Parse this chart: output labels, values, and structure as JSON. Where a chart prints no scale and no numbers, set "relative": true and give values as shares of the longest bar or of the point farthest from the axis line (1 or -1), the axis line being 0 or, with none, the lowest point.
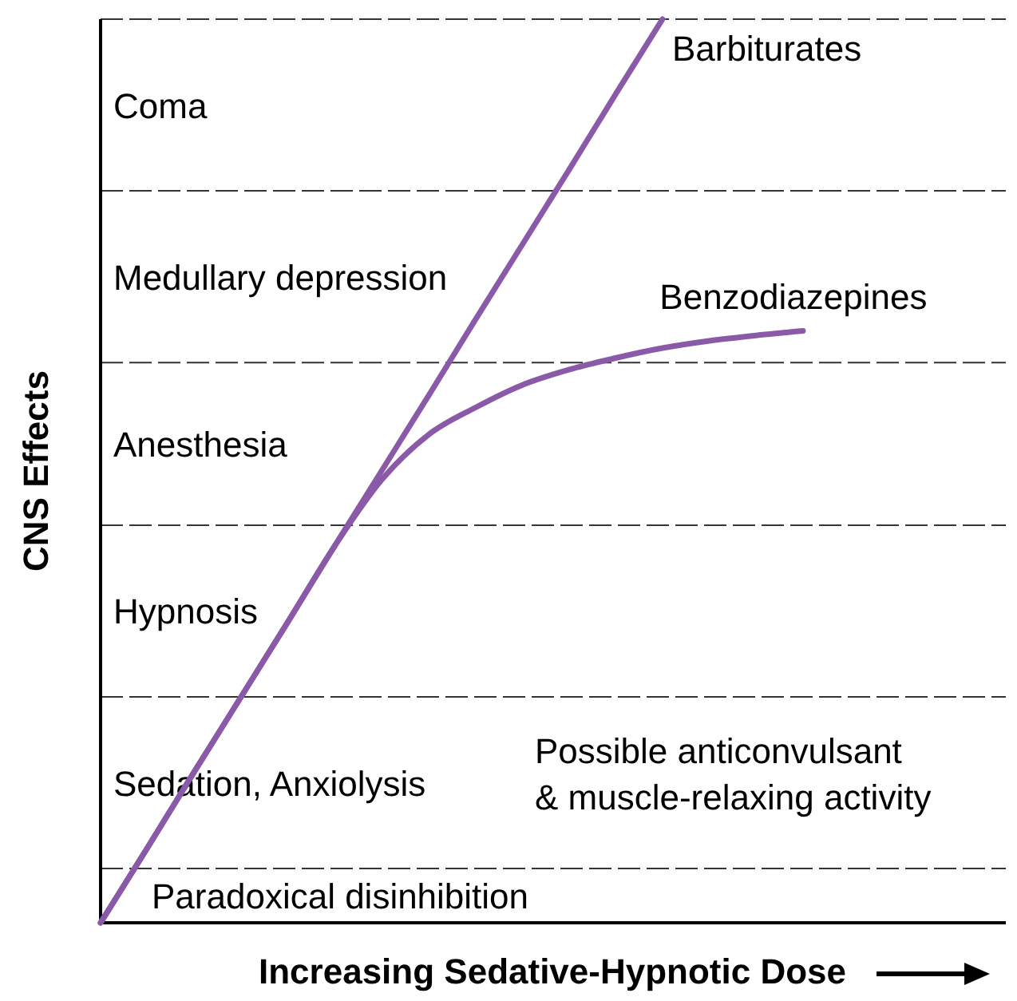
{
  "chart_data": {
    "type": "line",
    "relative": true,
    "xlabel": "Increasing Sedative-Hypnotic Dose",
    "ylabel": "CNS Effects",
    "categories": [
      null,
      null,
      null,
      null,
      null,
      null,
      null,
      null,
      null,
      null,
      null,
      null,
      null,
      null,
      null,
      null,
      null,
      null,
      null,
      null
    ],
    "series": [
      {
        "name": "Barbiturates",
        "color": "#8a5aa8",
        "values": [
          0,
          0.083,
          0.167,
          0.25,
          0.333,
          0.417,
          0.5,
          0.583,
          0.667,
          0.75,
          0.833,
          0.917,
          1,
          null,
          null,
          null,
          null,
          null,
          null,
          null
        ]
      },
      {
        "name": "Benzodiazepines",
        "color": "#8a5aa8",
        "values": [
          0,
          0.083,
          0.167,
          0.25,
          0.333,
          0.417,
          0.49,
          0.54,
          0.57,
          0.595,
          0.612,
          0.625,
          0.636,
          0.644,
          0.65,
          0.655,
          null,
          null,
          null,
          null
        ]
      }
    ],
    "ref_lines": [
      {
        "axis": "y",
        "value": 0.06,
        "label": "Paradoxical disinhibition",
        "line_style": "dashed"
      },
      {
        "axis": "y",
        "value": 0.25,
        "label": "Sedation, Anxiolysis",
        "line_style": "dashed"
      },
      {
        "axis": "y",
        "value": 0.44,
        "label": "Hypnosis",
        "line_style": "dashed"
      },
      {
        "axis": "y",
        "value": 0.62,
        "label": "Anesthesia",
        "line_style": "dashed"
      },
      {
        "axis": "y",
        "value": 0.81,
        "label": "Medullary depression",
        "line_style": "dashed"
      },
      {
        "axis": "y",
        "value": 1,
        "label": "Coma",
        "line_style": "dashed"
      }
    ],
    "annotations": [
      "Possible anticonvulsant & muscle-relaxing activity"
    ],
    "legend": false,
    "line_style": "solid"
  }
}
